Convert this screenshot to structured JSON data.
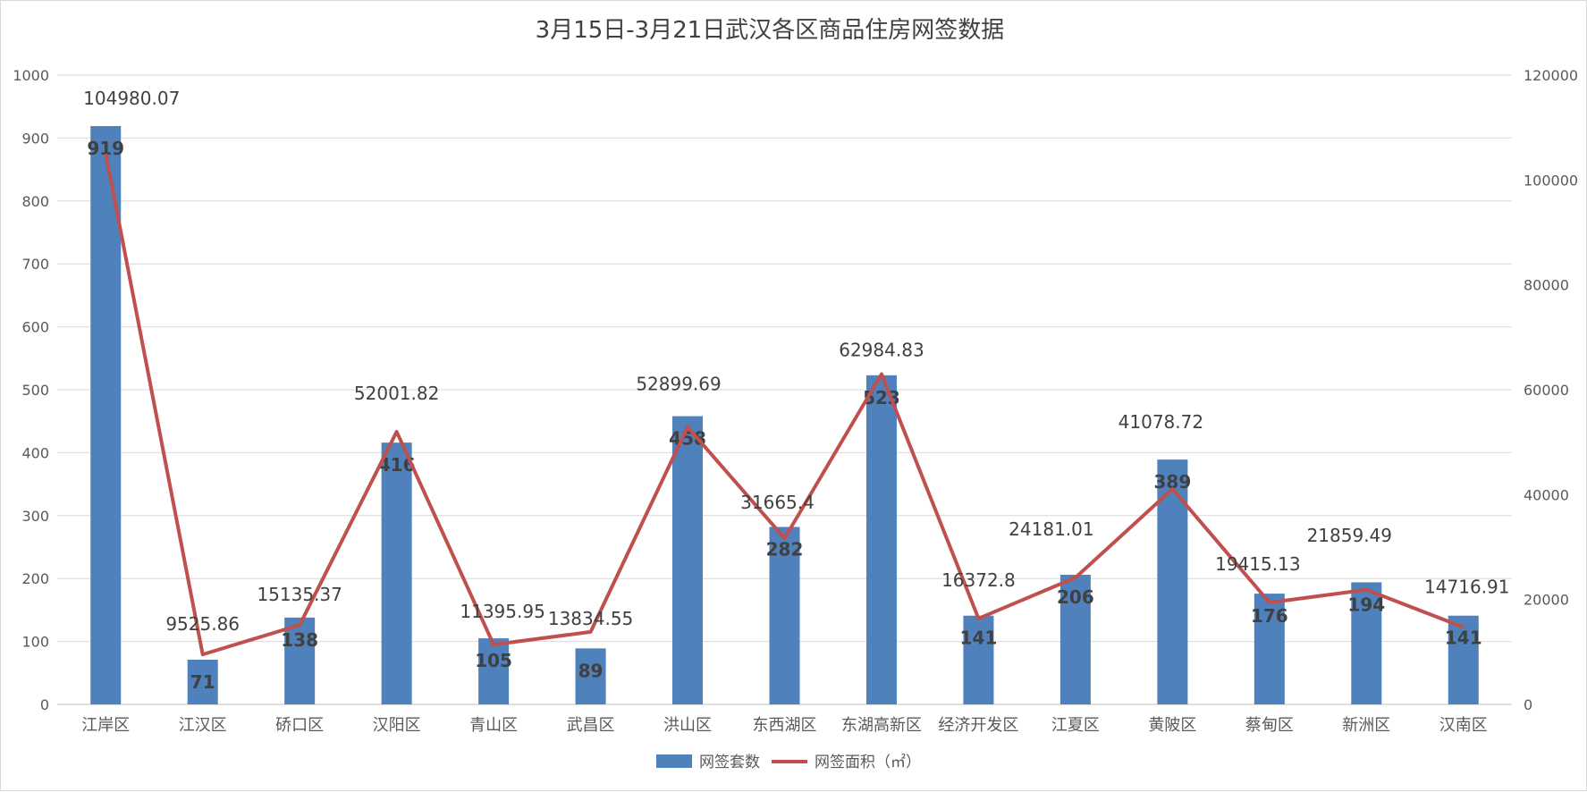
{
  "chart_data": {
    "type": "bar",
    "title": "3月15日-3月21日武汉各区商品住房网签数据",
    "categories": [
      "江岸区",
      "江汉区",
      "硚口区",
      "汉阳区",
      "青山区",
      "武昌区",
      "洪山区",
      "东西湖区",
      "东湖高新区",
      "经济开发区",
      "江夏区",
      "黄陂区",
      "蔡甸区",
      "新洲区",
      "汉南区"
    ],
    "series": [
      {
        "name": "网签套数",
        "type": "bar",
        "axis": "left",
        "color": "#4F81BD",
        "values": [
          919,
          71,
          138,
          416,
          105,
          89,
          458,
          282,
          523,
          141,
          206,
          389,
          176,
          194,
          141
        ],
        "labels": [
          "919",
          "71",
          "138",
          "416",
          "105",
          "89",
          "458",
          "282",
          "523",
          "141",
          "206",
          "389",
          "176",
          "194",
          "141"
        ]
      },
      {
        "name": "网签面积（㎡）",
        "type": "line",
        "axis": "right",
        "color": "#C0504D",
        "values": [
          104980.07,
          9525.86,
          15135.37,
          52001.82,
          11395.95,
          13834.55,
          52899.69,
          31665.4,
          62984.83,
          16372.8,
          24181.01,
          41078.72,
          19415.13,
          21859.49,
          14716.91
        ],
        "labels": [
          "104980.07",
          "9525.86",
          "15135.37",
          "52001.82",
          "11395.95",
          "13834.55",
          "52899.69",
          "31665.4",
          "62984.83",
          "16372.8",
          "24181.01",
          "41078.72",
          "19415.13",
          "21859.49",
          "14716.91"
        ]
      }
    ],
    "y_left": {
      "min": 0,
      "max": 1000,
      "ticks": [
        "0",
        "100",
        "200",
        "300",
        "400",
        "500",
        "600",
        "700",
        "800",
        "900",
        "1000"
      ]
    },
    "y_right": {
      "min": 0,
      "max": 120000,
      "ticks": [
        "0",
        "20000",
        "40000",
        "60000",
        "80000",
        "100000",
        "120000"
      ]
    },
    "grid": true,
    "legend_position": "bottom"
  }
}
